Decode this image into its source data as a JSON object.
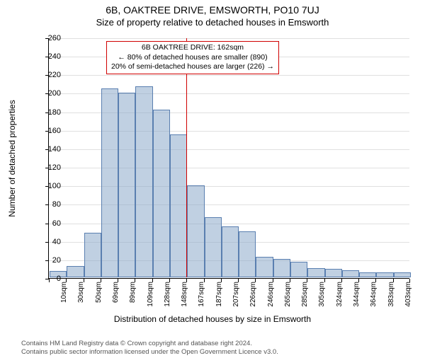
{
  "header": {
    "title_main": "6B, OAKTREE DRIVE, EMSWORTH, PO10 7UJ",
    "title_sub": "Size of property relative to detached houses in Emsworth"
  },
  "chart": {
    "type": "histogram",
    "y_label": "Number of detached properties",
    "x_label": "Distribution of detached houses by size in Emsworth",
    "ylim": [
      0,
      260
    ],
    "ytick_step": 20,
    "x_tick_labels": [
      "10sqm",
      "30sqm",
      "50sqm",
      "69sqm",
      "89sqm",
      "109sqm",
      "128sqm",
      "148sqm",
      "167sqm",
      "187sqm",
      "207sqm",
      "226sqm",
      "246sqm",
      "265sqm",
      "285sqm",
      "305sqm",
      "324sqm",
      "344sqm",
      "364sqm",
      "383sqm",
      "403sqm"
    ],
    "bar_values": [
      7,
      12,
      48,
      205,
      200,
      207,
      182,
      155,
      100,
      65,
      55,
      50,
      22,
      20,
      17,
      10,
      9,
      8,
      5,
      5,
      5
    ],
    "bar_color_fill": "#8daacb",
    "bar_color_stroke": "#5a7fb0",
    "bar_opacity": 0.55,
    "background_color": "#ffffff",
    "grid_color": "#e0e0e0",
    "marker_index": 8,
    "marker_color": "#d00000",
    "callout": {
      "line1": "6B OAKTREE DRIVE: 162sqm",
      "line2": "← 80% of detached houses are smaller (890)",
      "line3": "20% of semi-detached houses are larger (226) →"
    }
  },
  "footer": {
    "line1": "Contains HM Land Registry data © Crown copyright and database right 2024.",
    "line2": "Contains public sector information licensed under the Open Government Licence v3.0."
  }
}
